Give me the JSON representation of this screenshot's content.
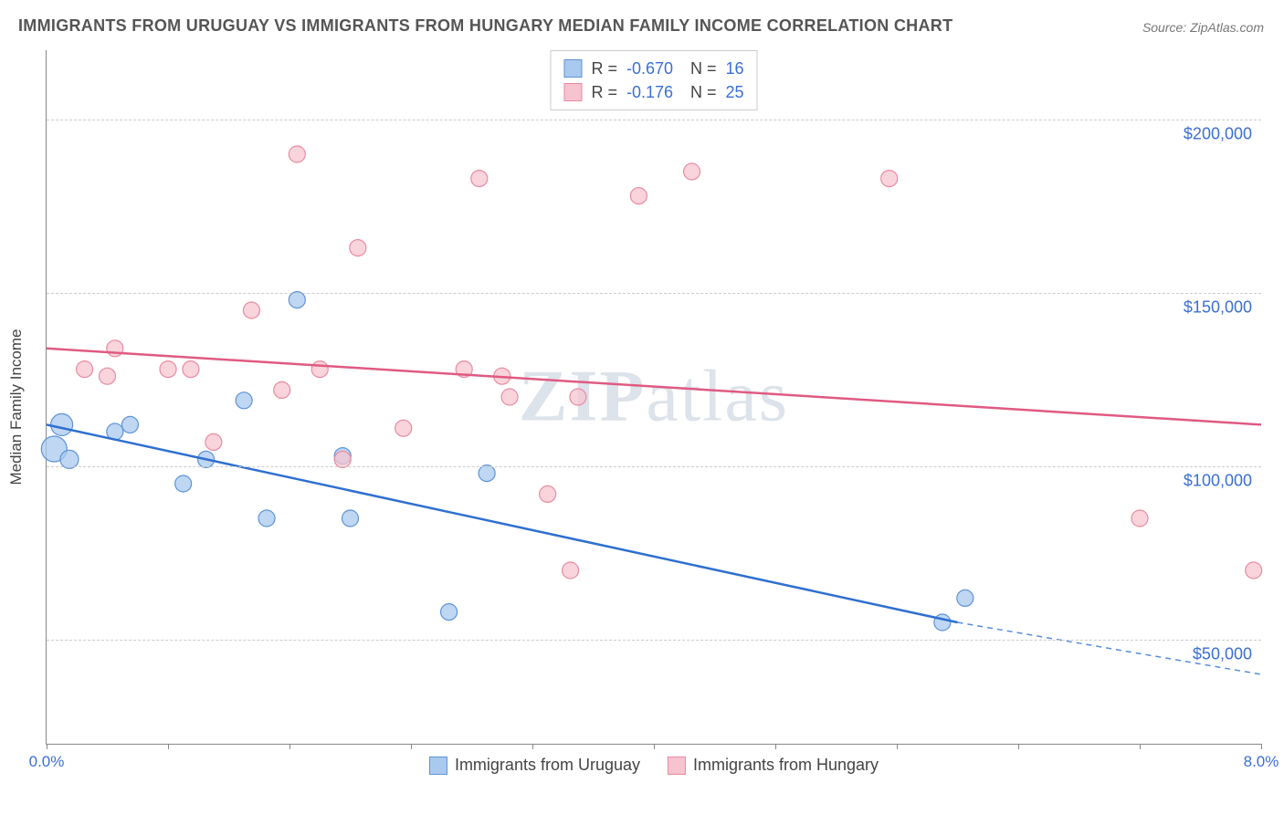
{
  "title": "IMMIGRANTS FROM URUGUAY VS IMMIGRANTS FROM HUNGARY MEDIAN FAMILY INCOME CORRELATION CHART",
  "source": "Source: ZipAtlas.com",
  "y_axis_title": "Median Family Income",
  "watermark": {
    "bold": "ZIP",
    "rest": "atlas"
  },
  "plot": {
    "bg": "#ffffff",
    "border_color": "#888888",
    "grid_color": "#cccccc",
    "xlim": [
      0.0,
      8.0
    ],
    "ylim": [
      20000,
      220000
    ],
    "y_gridlines": [
      50000,
      100000,
      150000,
      200000
    ],
    "y_tick_labels": {
      "50000": "$50,000",
      "100000": "$100,000",
      "150000": "$150,000",
      "200000": "$200,000"
    },
    "x_ticks": [
      0,
      0.8,
      1.6,
      2.4,
      3.2,
      4.0,
      4.8,
      5.6,
      6.4,
      7.2,
      8.0
    ],
    "x_tick_labels": {
      "0": "0.0%",
      "8": "8.0%"
    }
  },
  "legend_top": {
    "rows": [
      {
        "swatch_fill": "#a9c9ef",
        "swatch_stroke": "#5e93d6",
        "r_label": "R =",
        "r_val": "-0.670",
        "n_label": "N =",
        "n_val": "16"
      },
      {
        "swatch_fill": "#f6c3cf",
        "swatch_stroke": "#e98aa2",
        "r_label": "R =",
        "r_val": "-0.176",
        "n_label": "N =",
        "n_val": "25"
      }
    ]
  },
  "legend_bottom": [
    {
      "swatch_fill": "#a9c9ef",
      "swatch_stroke": "#5e93d6",
      "label": "Immigrants from Uruguay"
    },
    {
      "swatch_fill": "#f6c3cf",
      "swatch_stroke": "#e98aa2",
      "label": "Immigrants from Hungary"
    }
  ],
  "series": [
    {
      "name": "uruguay",
      "color_fill": "#a9c9ef",
      "color_stroke": "#5e93d6",
      "marker_opacity": 0.75,
      "marker_r": 9,
      "line_color": "#2f6fd0",
      "line_width": 2.5,
      "trend": {
        "x1": 0.0,
        "y1": 112000,
        "x2": 6.0,
        "y2": 55000,
        "dash_x2": 8.0,
        "dash_y2": 40000
      },
      "points": [
        {
          "x": 0.05,
          "y": 105000,
          "r": 14
        },
        {
          "x": 0.1,
          "y": 112000,
          "r": 12
        },
        {
          "x": 0.15,
          "y": 102000,
          "r": 10
        },
        {
          "x": 0.45,
          "y": 110000,
          "r": 9
        },
        {
          "x": 0.55,
          "y": 112000,
          "r": 9
        },
        {
          "x": 0.9,
          "y": 95000,
          "r": 9
        },
        {
          "x": 1.05,
          "y": 102000,
          "r": 9
        },
        {
          "x": 1.3,
          "y": 119000,
          "r": 9
        },
        {
          "x": 1.45,
          "y": 85000,
          "r": 9
        },
        {
          "x": 1.65,
          "y": 148000,
          "r": 9
        },
        {
          "x": 1.95,
          "y": 103000,
          "r": 9
        },
        {
          "x": 2.0,
          "y": 85000,
          "r": 9
        },
        {
          "x": 2.65,
          "y": 58000,
          "r": 9
        },
        {
          "x": 2.9,
          "y": 98000,
          "r": 9
        },
        {
          "x": 5.9,
          "y": 55000,
          "r": 9
        },
        {
          "x": 6.05,
          "y": 62000,
          "r": 9
        }
      ]
    },
    {
      "name": "hungary",
      "color_fill": "#f6c3cf",
      "color_stroke": "#e98aa2",
      "marker_opacity": 0.72,
      "marker_r": 9,
      "line_color": "#e05a82",
      "line_width": 2.5,
      "trend": {
        "x1": 0.0,
        "y1": 134000,
        "x2": 8.0,
        "y2": 112000
      },
      "points": [
        {
          "x": 0.25,
          "y": 128000,
          "r": 9
        },
        {
          "x": 0.4,
          "y": 126000,
          "r": 9
        },
        {
          "x": 0.45,
          "y": 134000,
          "r": 9
        },
        {
          "x": 0.8,
          "y": 128000,
          "r": 9
        },
        {
          "x": 0.95,
          "y": 128000,
          "r": 9
        },
        {
          "x": 1.1,
          "y": 107000,
          "r": 9
        },
        {
          "x": 1.35,
          "y": 145000,
          "r": 9
        },
        {
          "x": 1.55,
          "y": 122000,
          "r": 9
        },
        {
          "x": 1.65,
          "y": 190000,
          "r": 9
        },
        {
          "x": 1.8,
          "y": 128000,
          "r": 9
        },
        {
          "x": 1.95,
          "y": 102000,
          "r": 9
        },
        {
          "x": 2.05,
          "y": 163000,
          "r": 9
        },
        {
          "x": 2.35,
          "y": 111000,
          "r": 9
        },
        {
          "x": 2.75,
          "y": 128000,
          "r": 9
        },
        {
          "x": 2.85,
          "y": 183000,
          "r": 9
        },
        {
          "x": 3.0,
          "y": 126000,
          "r": 9
        },
        {
          "x": 3.05,
          "y": 120000,
          "r": 9
        },
        {
          "x": 3.3,
          "y": 92000,
          "r": 9
        },
        {
          "x": 3.45,
          "y": 70000,
          "r": 9
        },
        {
          "x": 3.5,
          "y": 120000,
          "r": 9
        },
        {
          "x": 3.9,
          "y": 178000,
          "r": 9
        },
        {
          "x": 4.25,
          "y": 185000,
          "r": 9
        },
        {
          "x": 5.55,
          "y": 183000,
          "r": 9
        },
        {
          "x": 7.2,
          "y": 85000,
          "r": 9
        },
        {
          "x": 7.95,
          "y": 70000,
          "r": 9
        }
      ]
    }
  ]
}
